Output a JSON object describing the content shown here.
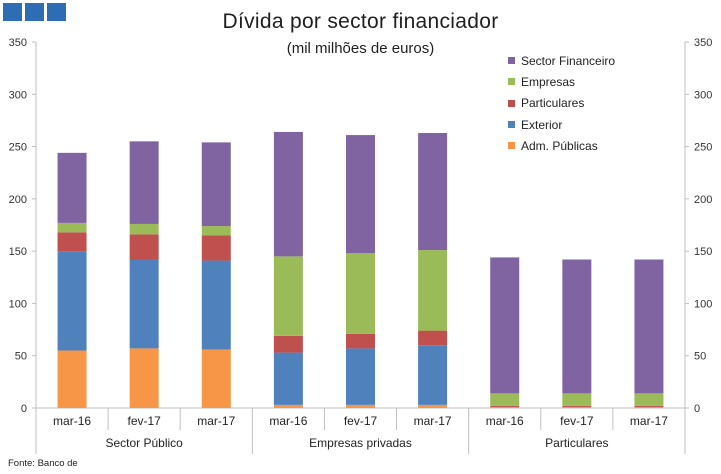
{
  "header": {
    "squares": [
      "#2e6db3",
      "#2e6db3",
      "#2e6db3"
    ]
  },
  "source": "Fonte: Banco de",
  "chart_data": {
    "type": "bar",
    "stacked": true,
    "title": "Dívida por sector financiador",
    "subtitle": "(mil milhões de euros)",
    "ylim": [
      0,
      350
    ],
    "yticks": [
      0,
      50,
      100,
      150,
      200,
      250,
      300,
      350
    ],
    "secondary_axis": true,
    "grid": false,
    "legend_position": "top-right",
    "groups": [
      {
        "label": "Sector Público",
        "categories": [
          "mar-16",
          "fev-17",
          "mar-17"
        ]
      },
      {
        "label": "Empresas privadas",
        "categories": [
          "mar-16",
          "fev-17",
          "mar-17"
        ]
      },
      {
        "label": "Particulares",
        "categories": [
          "mar-16",
          "fev-17",
          "mar-17"
        ]
      }
    ],
    "series": [
      {
        "name": "Adm. Públicas",
        "color": "#f79646",
        "values": [
          55,
          57,
          56,
          3,
          3,
          3,
          1,
          1,
          1
        ]
      },
      {
        "name": "Exterior",
        "color": "#4f81bd",
        "values": [
          95,
          85,
          85,
          50,
          54,
          57,
          0,
          0,
          0
        ]
      },
      {
        "name": "Particulares",
        "color": "#c0504d",
        "values": [
          18,
          24,
          24,
          16,
          14,
          14,
          1,
          1,
          1
        ]
      },
      {
        "name": "Empresas",
        "color": "#9bbb59",
        "values": [
          9,
          10,
          9,
          76,
          77,
          77,
          12,
          12,
          12
        ]
      },
      {
        "name": "Sector Financeiro",
        "color": "#8064a2",
        "values": [
          67,
          79,
          80,
          119,
          113,
          112,
          130,
          128,
          128
        ]
      }
    ],
    "legend_order": [
      "Sector Financeiro",
      "Empresas",
      "Particulares",
      "Exterior",
      "Adm. Públicas"
    ]
  }
}
